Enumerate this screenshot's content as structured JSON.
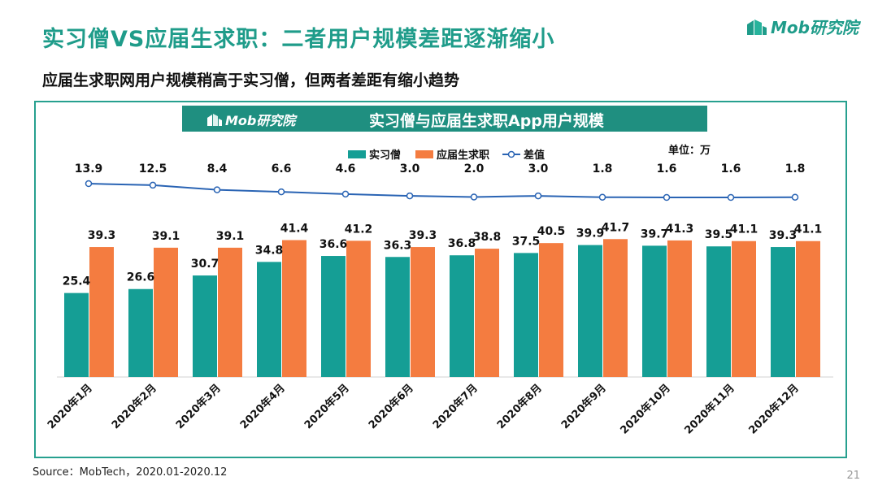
{
  "header": {
    "title": "实习僧VS应届生求职：二者用户规模差距逐渐缩小",
    "subtitle": "应届生求职网用户规模稍高于实习僧，但两者差距有缩小趋势",
    "brand": "Mob研究院"
  },
  "banner": {
    "brand": "Mob研究院",
    "title": "实习僧与应届生求职App用户规模"
  },
  "footer": {
    "source": "Source：MobTech，2020.01-2020.12",
    "page_number": "21"
  },
  "colors": {
    "accent": "#1f9c8a",
    "bar_a": "#159e95",
    "bar_b": "#f47c40",
    "line": "#2a64b4"
  },
  "chart_data": {
    "type": "bar",
    "unit_label": "单位：万",
    "categories": [
      "2020年1月",
      "2020年2月",
      "2020年3月",
      "2020年4月",
      "2020年5月",
      "2020年6月",
      "2020年7月",
      "2020年8月",
      "2020年9月",
      "2020年10月",
      "2020年11月",
      "2020年12月"
    ],
    "series": [
      {
        "name": "实习僧",
        "values": [
          25.4,
          26.6,
          30.7,
          34.8,
          36.6,
          36.3,
          36.8,
          37.5,
          39.9,
          39.7,
          39.5,
          39.3
        ]
      },
      {
        "name": "应届生求职",
        "values": [
          39.3,
          39.1,
          39.1,
          41.4,
          41.2,
          39.3,
          38.8,
          40.5,
          41.7,
          41.3,
          41.1,
          41.1
        ]
      }
    ],
    "line_series": {
      "name": "差值",
      "values": [
        13.9,
        12.5,
        8.4,
        6.6,
        4.6,
        3.0,
        2.0,
        3.0,
        1.8,
        1.6,
        1.6,
        1.8
      ]
    },
    "legend_position": "top",
    "ylim": [
      0,
      45
    ],
    "grid": false
  }
}
